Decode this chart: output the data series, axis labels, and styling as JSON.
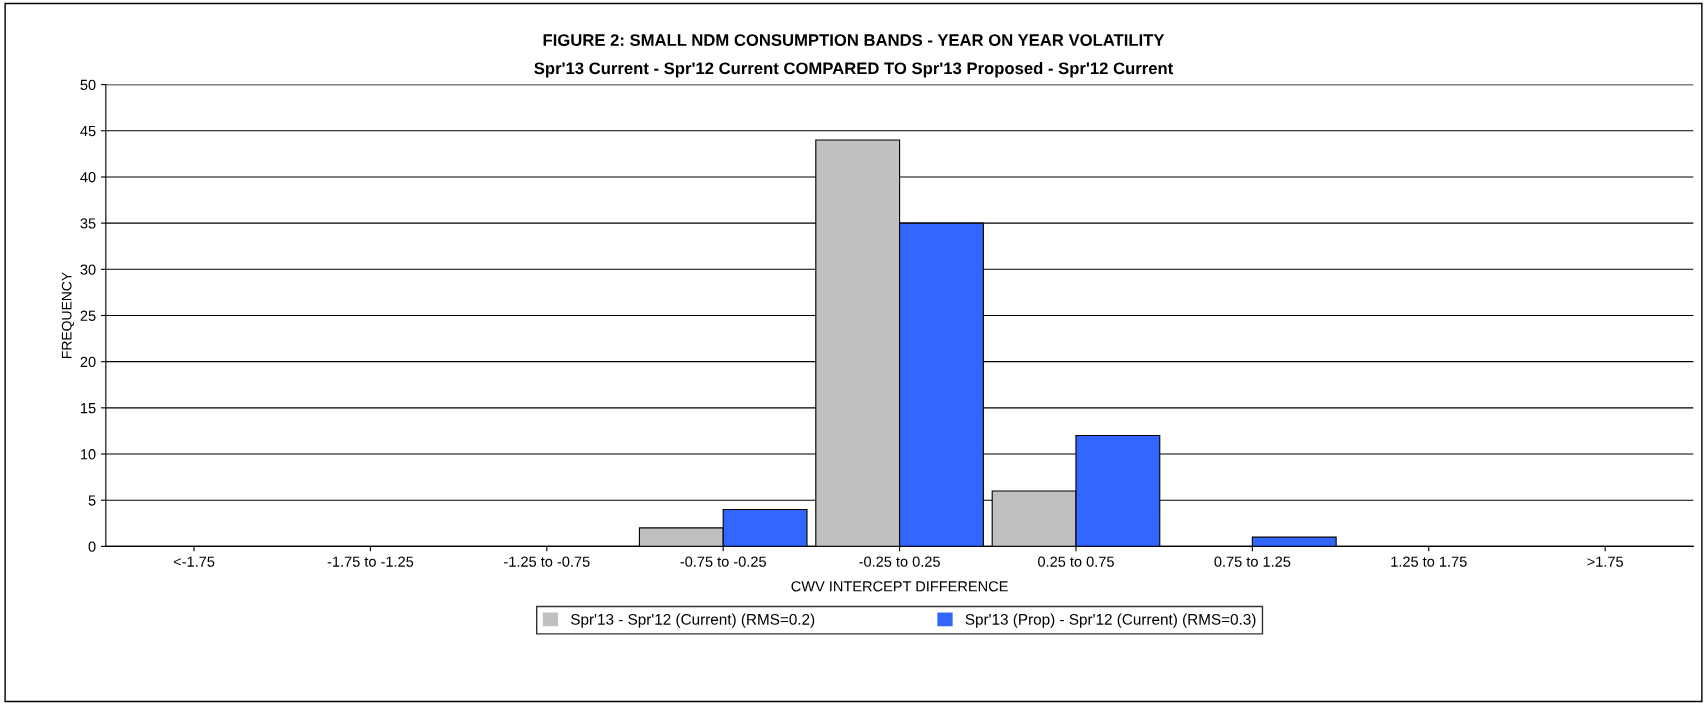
{
  "chart_data": {
    "type": "bar",
    "title": "FIGURE 2: SMALL NDM CONSUMPTION BANDS - YEAR ON YEAR VOLATILITY",
    "subtitle": "Spr'13 Current - Spr'12 Current COMPARED TO Spr'13 Proposed - Spr'12 Current",
    "xlabel": "CWV INTERCEPT DIFFERENCE",
    "ylabel": "FREQUENCY",
    "categories": [
      "<-1.75",
      "-1.75 to -1.25",
      "-1.25 to -0.75",
      "-0.75 to -0.25",
      "-0.25 to 0.25",
      "0.25 to 0.75",
      "0.75 to 1.25",
      "1.25 to 1.75",
      ">1.75"
    ],
    "series": [
      {
        "name": "Spr'13 - Spr'12 (Current) (RMS=0.2)",
        "color": "#c0c0c0",
        "values": [
          0,
          0,
          0,
          2,
          44,
          6,
          0,
          0,
          0
        ]
      },
      {
        "name": "Spr'13 (Prop) - Spr'12 (Current) (RMS=0.3)",
        "color": "#3366ff",
        "values": [
          0,
          0,
          0,
          4,
          35,
          12,
          1,
          0,
          0
        ]
      }
    ],
    "ylim": [
      0,
      50
    ],
    "yticks": [
      0,
      5,
      10,
      15,
      20,
      25,
      30,
      35,
      40,
      45,
      50
    ],
    "grid": "y",
    "legend": "bottom"
  }
}
